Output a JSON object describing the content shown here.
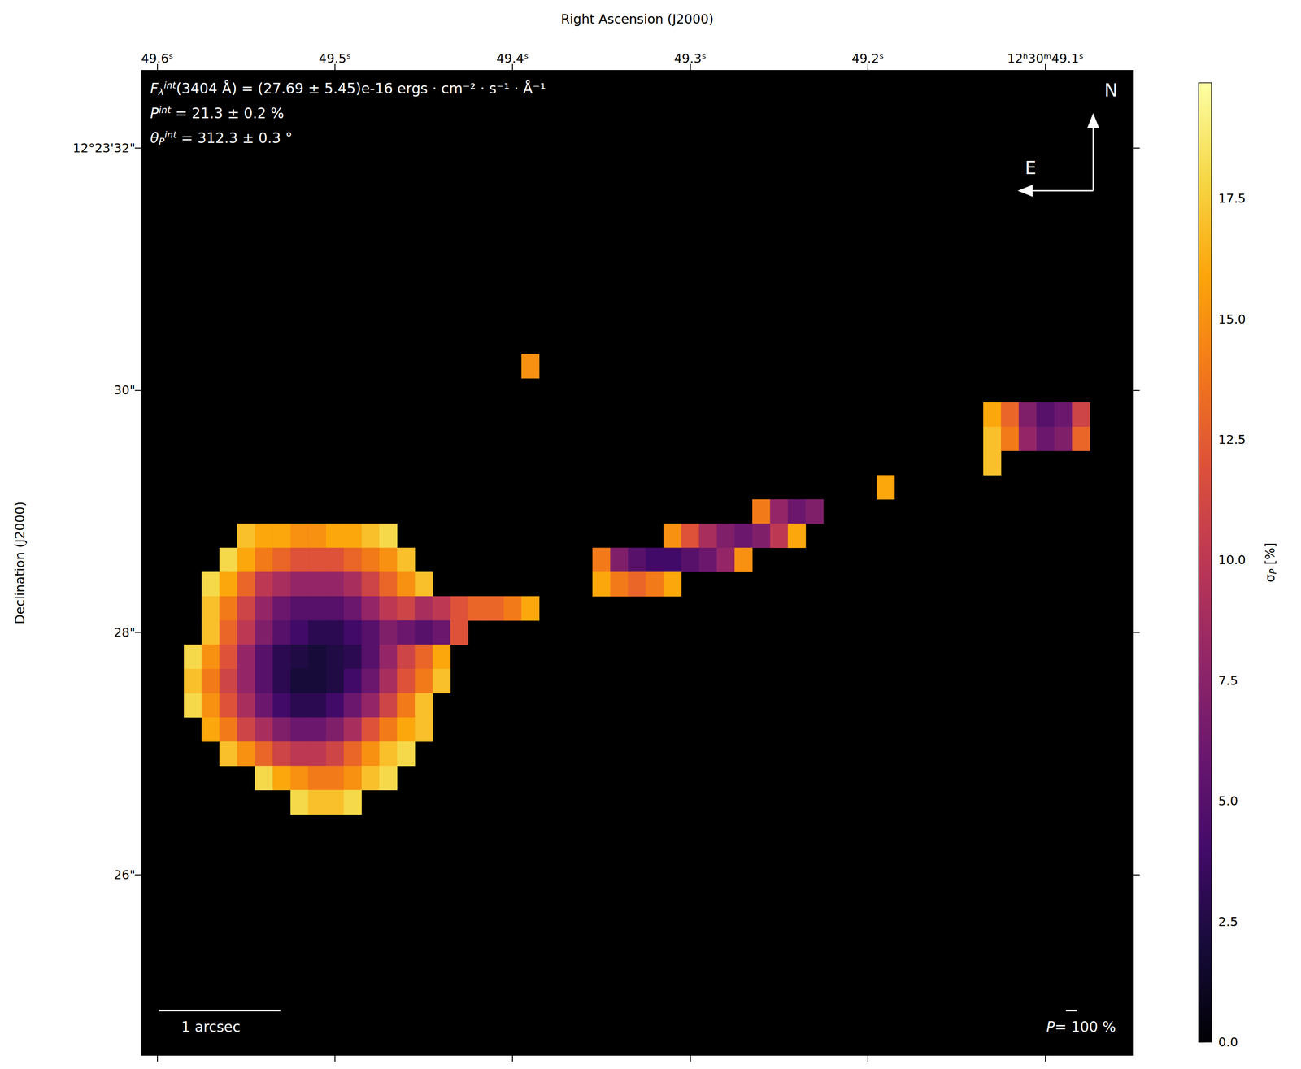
{
  "chart_data": {
    "type": "heatmap",
    "xlabel": "Right Ascension (J2000)",
    "ylabel": "Declination (J2000)",
    "xlim": [
      49.609,
      49.0505
    ],
    "ylim": [
      24.51,
      32.64
    ],
    "xticks": [
      {
        "value": 49.6,
        "label": "49.6ˢ"
      },
      {
        "value": 49.5,
        "label": "49.5ˢ"
      },
      {
        "value": 49.4,
        "label": "49.4ˢ"
      },
      {
        "value": 49.3,
        "label": "49.3ˢ"
      },
      {
        "value": 49.2,
        "label": "49.2ˢ"
      },
      {
        "value": 49.1,
        "label": "12ʰ30ᵐ49.1ˢ"
      }
    ],
    "yticks": [
      {
        "value": 32,
        "label": "12°23'32\""
      },
      {
        "value": 30,
        "label": "30\""
      },
      {
        "value": 28,
        "label": "28\""
      },
      {
        "value": 26,
        "label": "26\""
      }
    ],
    "cell_size": {
      "x": 0.01,
      "y": 0.2
    },
    "cells": [
      [
        49.55,
        28.8,
        17
      ],
      [
        49.54,
        28.8,
        16
      ],
      [
        49.53,
        28.8,
        16
      ],
      [
        49.52,
        28.8,
        15
      ],
      [
        49.51,
        28.8,
        15
      ],
      [
        49.5,
        28.8,
        16
      ],
      [
        49.49,
        28.8,
        16
      ],
      [
        49.48,
        28.8,
        17
      ],
      [
        49.47,
        28.8,
        18
      ],
      [
        49.56,
        28.6,
        18
      ],
      [
        49.55,
        28.6,
        16
      ],
      [
        49.54,
        28.6,
        14
      ],
      [
        49.53,
        28.6,
        13
      ],
      [
        49.52,
        28.6,
        12
      ],
      [
        49.51,
        28.6,
        12
      ],
      [
        49.5,
        28.6,
        12
      ],
      [
        49.49,
        28.6,
        13
      ],
      [
        49.48,
        28.6,
        14
      ],
      [
        49.47,
        28.6,
        15
      ],
      [
        49.46,
        28.6,
        17
      ],
      [
        49.57,
        28.4,
        18
      ],
      [
        49.56,
        28.4,
        16
      ],
      [
        49.55,
        28.4,
        13
      ],
      [
        49.54,
        28.4,
        10
      ],
      [
        49.53,
        28.4,
        9
      ],
      [
        49.52,
        28.4,
        8
      ],
      [
        49.51,
        28.4,
        8
      ],
      [
        49.5,
        28.4,
        8
      ],
      [
        49.49,
        28.4,
        9
      ],
      [
        49.48,
        28.4,
        11
      ],
      [
        49.47,
        28.4,
        13
      ],
      [
        49.46,
        28.4,
        15
      ],
      [
        49.45,
        28.4,
        17
      ],
      [
        49.57,
        28.2,
        17
      ],
      [
        49.56,
        28.2,
        14
      ],
      [
        49.55,
        28.2,
        11
      ],
      [
        49.54,
        28.2,
        8
      ],
      [
        49.53,
        28.2,
        6
      ],
      [
        49.52,
        28.2,
        5
      ],
      [
        49.51,
        28.2,
        5
      ],
      [
        49.5,
        28.2,
        5
      ],
      [
        49.49,
        28.2,
        6
      ],
      [
        49.48,
        28.2,
        8
      ],
      [
        49.47,
        28.2,
        10
      ],
      [
        49.46,
        28.2,
        11
      ],
      [
        49.45,
        28.2,
        9
      ],
      [
        49.44,
        28.2,
        10
      ],
      [
        49.43,
        28.2,
        12
      ],
      [
        49.42,
        28.2,
        13
      ],
      [
        49.41,
        28.2,
        13
      ],
      [
        49.4,
        28.2,
        14
      ],
      [
        49.39,
        28.2,
        16
      ],
      [
        49.57,
        28.0,
        17
      ],
      [
        49.56,
        28.0,
        13
      ],
      [
        49.55,
        28.0,
        10
      ],
      [
        49.54,
        28.0,
        7
      ],
      [
        49.53,
        28.0,
        5
      ],
      [
        49.52,
        28.0,
        4
      ],
      [
        49.51,
        28.0,
        3
      ],
      [
        49.5,
        28.0,
        3
      ],
      [
        49.49,
        28.0,
        4
      ],
      [
        49.48,
        28.0,
        5
      ],
      [
        49.47,
        28.0,
        7
      ],
      [
        49.46,
        28.0,
        6
      ],
      [
        49.45,
        28.0,
        5
      ],
      [
        49.44,
        28.0,
        6
      ],
      [
        49.43,
        28.0,
        12
      ],
      [
        49.58,
        27.8,
        18
      ],
      [
        49.57,
        27.8,
        15
      ],
      [
        49.56,
        27.8,
        12
      ],
      [
        49.55,
        27.8,
        8
      ],
      [
        49.54,
        27.8,
        5
      ],
      [
        49.53,
        27.8,
        3
      ],
      [
        49.52,
        27.8,
        2.5
      ],
      [
        49.51,
        27.8,
        2
      ],
      [
        49.5,
        27.8,
        2.5
      ],
      [
        49.49,
        27.8,
        3
      ],
      [
        49.48,
        27.8,
        5
      ],
      [
        49.47,
        27.8,
        8
      ],
      [
        49.46,
        27.8,
        11
      ],
      [
        49.45,
        27.8,
        13
      ],
      [
        49.44,
        27.8,
        16
      ],
      [
        49.58,
        27.6,
        17
      ],
      [
        49.57,
        27.6,
        14
      ],
      [
        49.56,
        27.6,
        11
      ],
      [
        49.55,
        27.6,
        8
      ],
      [
        49.54,
        27.6,
        5
      ],
      [
        49.53,
        27.6,
        3
      ],
      [
        49.52,
        27.6,
        2
      ],
      [
        49.51,
        27.6,
        2
      ],
      [
        49.5,
        27.6,
        2.5
      ],
      [
        49.49,
        27.6,
        4
      ],
      [
        49.48,
        27.6,
        6
      ],
      [
        49.47,
        27.6,
        9
      ],
      [
        49.46,
        27.6,
        12
      ],
      [
        49.45,
        27.6,
        14
      ],
      [
        49.44,
        27.6,
        17
      ],
      [
        49.58,
        27.4,
        18
      ],
      [
        49.57,
        27.4,
        15
      ],
      [
        49.56,
        27.4,
        12
      ],
      [
        49.55,
        27.4,
        9
      ],
      [
        49.54,
        27.4,
        6
      ],
      [
        49.53,
        27.4,
        4
      ],
      [
        49.52,
        27.4,
        3
      ],
      [
        49.51,
        27.4,
        3
      ],
      [
        49.5,
        27.4,
        4
      ],
      [
        49.49,
        27.4,
        6
      ],
      [
        49.48,
        27.4,
        8
      ],
      [
        49.47,
        27.4,
        11
      ],
      [
        49.46,
        27.4,
        14
      ],
      [
        49.45,
        27.4,
        17
      ],
      [
        49.57,
        27.2,
        16
      ],
      [
        49.56,
        27.2,
        14
      ],
      [
        49.55,
        27.2,
        11
      ],
      [
        49.54,
        27.2,
        9
      ],
      [
        49.53,
        27.2,
        7
      ],
      [
        49.52,
        27.2,
        6
      ],
      [
        49.51,
        27.2,
        6
      ],
      [
        49.5,
        27.2,
        7
      ],
      [
        49.49,
        27.2,
        9
      ],
      [
        49.48,
        27.2,
        12
      ],
      [
        49.47,
        27.2,
        14
      ],
      [
        49.46,
        27.2,
        16
      ],
      [
        49.45,
        27.2,
        17
      ],
      [
        49.56,
        27.0,
        17
      ],
      [
        49.55,
        27.0,
        15
      ],
      [
        49.54,
        27.0,
        13
      ],
      [
        49.53,
        27.0,
        11
      ],
      [
        49.52,
        27.0,
        10
      ],
      [
        49.51,
        27.0,
        10
      ],
      [
        49.5,
        27.0,
        11
      ],
      [
        49.49,
        27.0,
        13
      ],
      [
        49.48,
        27.0,
        15
      ],
      [
        49.47,
        27.0,
        17
      ],
      [
        49.46,
        27.0,
        18
      ],
      [
        49.54,
        26.8,
        18
      ],
      [
        49.53,
        26.8,
        16
      ],
      [
        49.52,
        26.8,
        15
      ],
      [
        49.51,
        26.8,
        14
      ],
      [
        49.5,
        26.8,
        14
      ],
      [
        49.49,
        26.8,
        15
      ],
      [
        49.48,
        26.8,
        17
      ],
      [
        49.47,
        26.8,
        18
      ],
      [
        49.52,
        26.6,
        18
      ],
      [
        49.51,
        26.6,
        17
      ],
      [
        49.5,
        26.6,
        17
      ],
      [
        49.49,
        26.6,
        18
      ],
      [
        49.39,
        30.2,
        15
      ],
      [
        49.26,
        29.0,
        14
      ],
      [
        49.25,
        29.0,
        8
      ],
      [
        49.24,
        29.0,
        6
      ],
      [
        49.23,
        29.0,
        7
      ],
      [
        49.31,
        28.8,
        15
      ],
      [
        49.3,
        28.8,
        12
      ],
      [
        49.29,
        28.8,
        9
      ],
      [
        49.28,
        28.8,
        7
      ],
      [
        49.27,
        28.8,
        6
      ],
      [
        49.26,
        28.8,
        7
      ],
      [
        49.25,
        28.8,
        10
      ],
      [
        49.24,
        28.8,
        16
      ],
      [
        49.35,
        28.6,
        14
      ],
      [
        49.34,
        28.6,
        7
      ],
      [
        49.33,
        28.6,
        5
      ],
      [
        49.32,
        28.6,
        4
      ],
      [
        49.31,
        28.6,
        4
      ],
      [
        49.3,
        28.6,
        5
      ],
      [
        49.29,
        28.6,
        6
      ],
      [
        49.28,
        28.6,
        8
      ],
      [
        49.27,
        28.6,
        15
      ],
      [
        49.35,
        28.4,
        16
      ],
      [
        49.34,
        28.4,
        14
      ],
      [
        49.33,
        28.4,
        13
      ],
      [
        49.32,
        28.4,
        14
      ],
      [
        49.31,
        28.4,
        16
      ],
      [
        49.19,
        29.2,
        16
      ],
      [
        49.13,
        29.4,
        17
      ],
      [
        49.13,
        29.8,
        16
      ],
      [
        49.12,
        29.8,
        13
      ],
      [
        49.11,
        29.8,
        7
      ],
      [
        49.1,
        29.8,
        5
      ],
      [
        49.09,
        29.8,
        6
      ],
      [
        49.08,
        29.8,
        11
      ],
      [
        49.13,
        29.6,
        17
      ],
      [
        49.12,
        29.6,
        14
      ],
      [
        49.11,
        29.6,
        8
      ],
      [
        49.1,
        29.6,
        6
      ],
      [
        49.09,
        29.6,
        7
      ],
      [
        49.08,
        29.6,
        13
      ]
    ],
    "colorbar": {
      "label": {
        "symbol": "σ",
        "sub": "P",
        "text": " [%]"
      },
      "range": [
        0,
        19.9
      ],
      "ticks": [
        {
          "value": 0,
          "label": "0.0"
        },
        2.5,
        {
          "value": 5,
          "label": "5.0"
        },
        7.5,
        {
          "value": 10,
          "label": "10.0"
        },
        12.5,
        {
          "value": 15,
          "label": "15.0"
        },
        17.5
      ]
    },
    "annotations": [
      {
        "symbol": "F",
        "sub": "λ",
        "sup": "int",
        "text": "(3404 Å) = (27.69 ± 5.45)e-16 ergs · cm⁻² · s⁻¹ · Å⁻¹"
      },
      {
        "symbol": "P",
        "sup": "int",
        "text": " = 21.3 ± 0.2 %"
      },
      {
        "symbol": "θ",
        "sub": "P",
        "sup": "int",
        "text": " = 312.3 ± 0.3 °"
      }
    ],
    "compass": {
      "north": "N",
      "east": "E"
    },
    "scale_bar": {
      "label": "1 arcsec",
      "length": 1
    },
    "vector_scale": {
      "symbol": "P",
      "text": "= 100 %"
    }
  }
}
